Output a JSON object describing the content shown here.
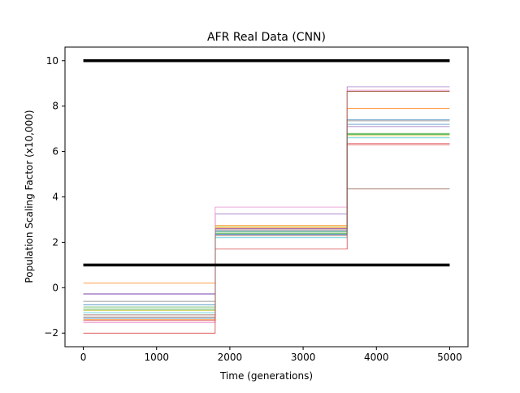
{
  "chart_data": {
    "type": "line",
    "title": "AFR Real Data (CNN)",
    "xlabel": "Time (generations)",
    "ylabel": "Population Scaling Factor (x10,000)",
    "xlim": [
      -250,
      5250
    ],
    "ylim": [
      -2.6,
      10.6
    ],
    "xticks": [
      0,
      1000,
      2000,
      3000,
      4000,
      5000
    ],
    "yticks": [
      -2,
      0,
      2,
      4,
      6,
      8,
      10
    ],
    "grid": false,
    "legend": "none",
    "breakpoints": [
      0,
      1800,
      3600,
      5000
    ],
    "bounds": [
      {
        "name": "",
        "color": "#000000",
        "values": [
          10,
          10,
          10
        ]
      },
      {
        "name": "",
        "color": "#000000",
        "values": [
          1,
          1,
          1
        ]
      }
    ],
    "series": [
      {
        "color": "#1f77b4",
        "values": [
          -0.75,
          2.35,
          7.2
        ]
      },
      {
        "color": "#ff7f0e",
        "values": [
          0.2,
          2.75,
          7.9
        ]
      },
      {
        "color": "#2ca02c",
        "values": [
          -0.85,
          2.45,
          6.75
        ]
      },
      {
        "color": "#d62728",
        "values": [
          -1.45,
          2.6,
          6.35
        ]
      },
      {
        "color": "#9467bd",
        "values": [
          -0.25,
          3.25,
          8.85
        ]
      },
      {
        "color": "#8c564b",
        "values": [
          -1.3,
          2.55,
          4.35
        ]
      },
      {
        "color": "#e377c2",
        "values": [
          -1.55,
          3.55,
          8.7
        ]
      },
      {
        "color": "#7f7f7f",
        "values": [
          -0.6,
          2.3,
          7.35
        ]
      },
      {
        "color": "#bcbd22",
        "values": [
          -1.0,
          2.7,
          6.7
        ]
      },
      {
        "color": "#17becf",
        "values": [
          -1.1,
          2.2,
          6.6
        ]
      },
      {
        "color": "#1f77b4",
        "values": [
          -1.35,
          2.5,
          7.4
        ]
      },
      {
        "color": "#ff7f0e",
        "values": [
          -1.4,
          2.65,
          8.65
        ]
      },
      {
        "color": "#2ca02c",
        "values": [
          -0.95,
          2.4,
          6.8
        ]
      },
      {
        "color": "#d62728",
        "values": [
          -2.0,
          1.7,
          6.3
        ]
      },
      {
        "color": "#9467bd",
        "values": [
          -0.3,
          2.6,
          7.1
        ]
      },
      {
        "color": "#8c564b",
        "values": [
          -1.2,
          2.3,
          8.65
        ]
      }
    ]
  }
}
